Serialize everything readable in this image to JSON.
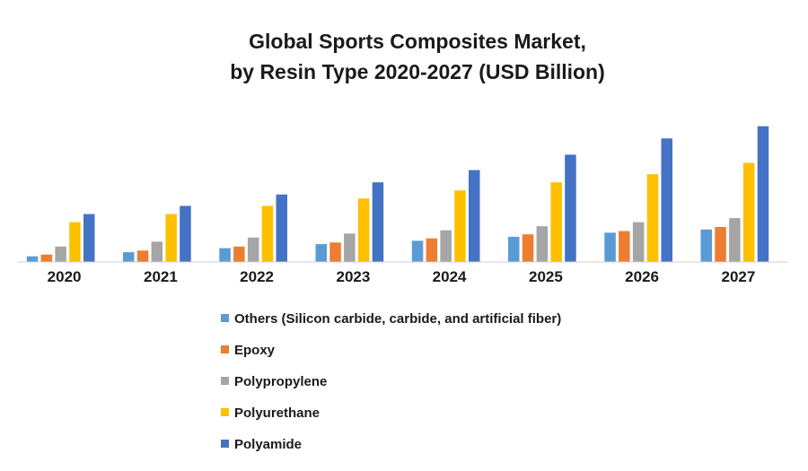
{
  "chart_data": {
    "type": "bar",
    "title_lines": [
      "Global Sports Composites Market,",
      "by Resin Type 2020-2027 (USD Billion)"
    ],
    "categories": [
      "2020",
      "2021",
      "2022",
      "2023",
      "2024",
      "2025",
      "2026",
      "2027"
    ],
    "series": [
      {
        "name": "Others (Silicon carbide, carbide, and artificial fiber)",
        "color": "#5B9BD5",
        "values": [
          0.7,
          1.2,
          1.7,
          2.2,
          2.6,
          3.1,
          3.6,
          4.0
        ]
      },
      {
        "name": "Epoxy",
        "color": "#ED7D31",
        "values": [
          0.9,
          1.4,
          1.9,
          2.4,
          2.9,
          3.4,
          3.8,
          4.3
        ]
      },
      {
        "name": "Polypropylene",
        "color": "#A5A5A5",
        "values": [
          1.9,
          2.5,
          3.0,
          3.5,
          3.9,
          4.4,
          4.9,
          5.4
        ]
      },
      {
        "name": "Polyurethane",
        "color": "#FFC000",
        "values": [
          4.9,
          5.9,
          6.9,
          7.8,
          8.8,
          9.8,
          10.8,
          12.2
        ]
      },
      {
        "name": "Polyamide",
        "color": "#4472C4",
        "values": [
          5.9,
          6.9,
          8.3,
          9.8,
          11.3,
          13.2,
          15.2,
          16.7
        ]
      }
    ],
    "xlabel": "",
    "ylabel": "",
    "ylim": [
      0,
      17
    ],
    "grid": false,
    "legend_position": "bottom"
  }
}
